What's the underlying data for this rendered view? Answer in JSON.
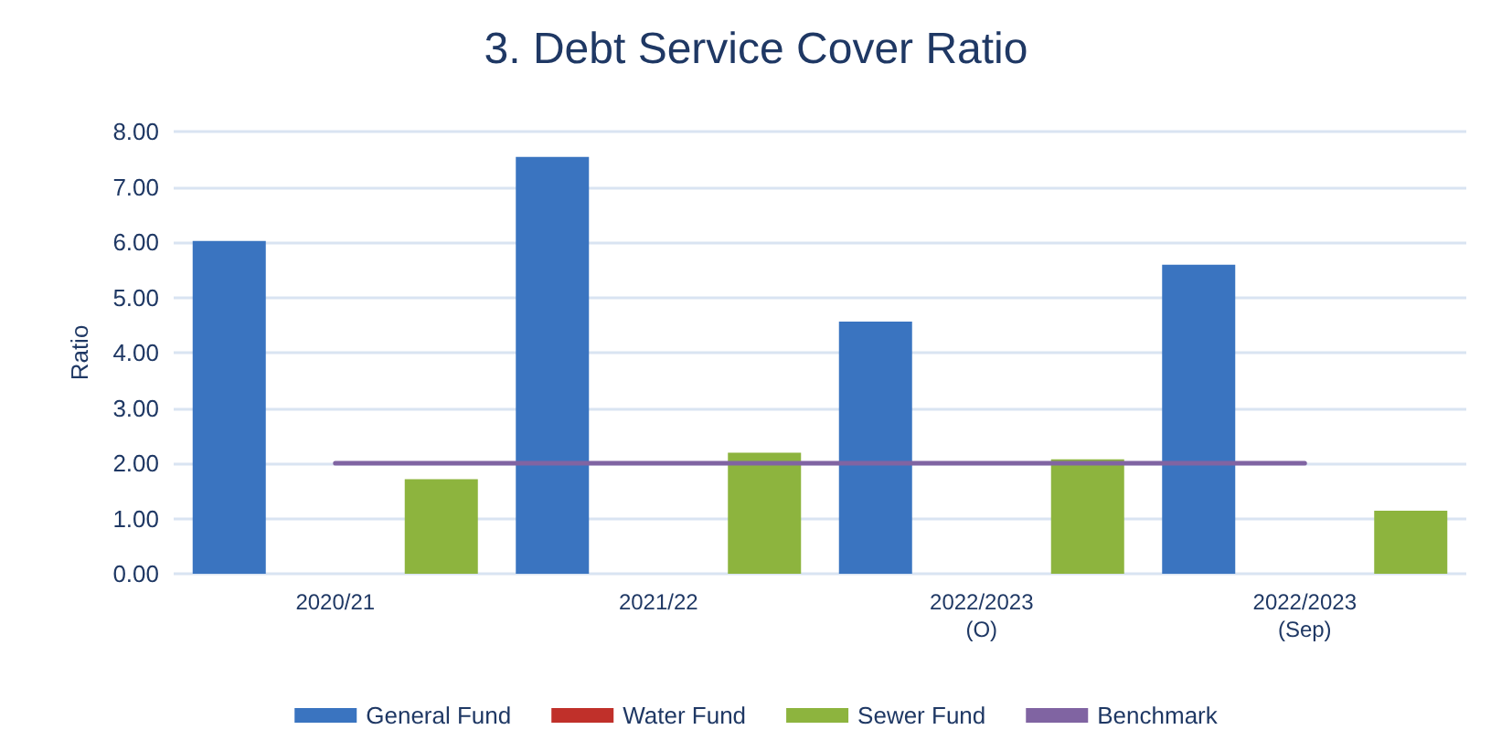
{
  "chart_data": {
    "type": "bar",
    "title": "3. Debt Service Cover Ratio",
    "ylabel": "Ratio",
    "categories": [
      "2020/21",
      "2021/22",
      "2022/2023\n(O)",
      "2022/2023\n(Sep)"
    ],
    "series": [
      {
        "name": "General Fund",
        "color": "#3a74c0",
        "values": [
          6.02,
          7.54,
          4.56,
          5.59
        ]
      },
      {
        "name": "Water Fund",
        "color": "#c0302a",
        "values": [
          0,
          0,
          0,
          0
        ]
      },
      {
        "name": "Sewer Fund",
        "color": "#8db43e",
        "values": [
          1.71,
          2.19,
          2.07,
          1.14
        ]
      },
      {
        "name": "Benchmark",
        "type": "line",
        "color": "#8064a2",
        "values": [
          2,
          2,
          2,
          2
        ]
      }
    ],
    "ylim": [
      0,
      8
    ],
    "yticks": [
      {
        "value": 0,
        "label": "0.00"
      },
      {
        "value": 1,
        "label": "1.00"
      },
      {
        "value": 2,
        "label": "2.00"
      },
      {
        "value": 3,
        "label": "3.00"
      },
      {
        "value": 4,
        "label": "4.00"
      },
      {
        "value": 5,
        "label": "5.00"
      },
      {
        "value": 6,
        "label": "6.00"
      },
      {
        "value": 7,
        "label": "7.00"
      },
      {
        "value": 8,
        "label": "8.00"
      }
    ],
    "grid": "y",
    "legend": "bottom",
    "marker": "none"
  }
}
